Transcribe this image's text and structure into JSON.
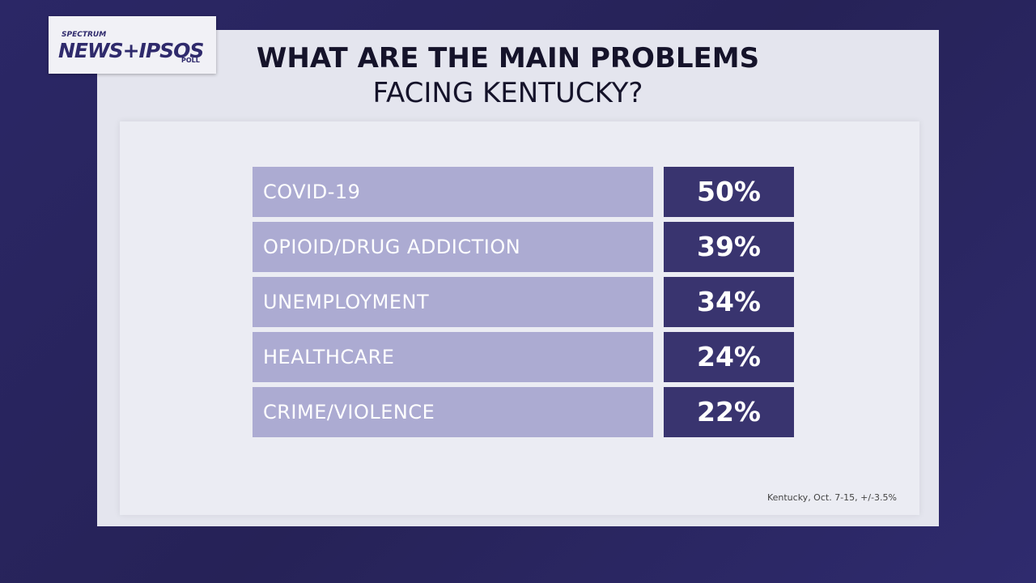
{
  "logo": {
    "brand": "SPECTRUM",
    "name": "NEWS+IPSOS",
    "sub": "POLL"
  },
  "header": {
    "title": "WHAT ARE THE MAIN PROBLEMS",
    "subtitle": "FACING KENTUCKY?"
  },
  "table": {
    "rows": [
      [
        "COVID-19",
        "50%"
      ],
      [
        "OPIOID/DRUG ADDICTION",
        "39%"
      ],
      [
        "UNEMPLOYMENT",
        "34%"
      ],
      [
        "HEALTHCARE",
        "24%"
      ],
      [
        "CRIME/VIOLENCE",
        "22%"
      ]
    ]
  },
  "footnote": "Kentucky, Oct. 7-15, +/-3.5%"
}
